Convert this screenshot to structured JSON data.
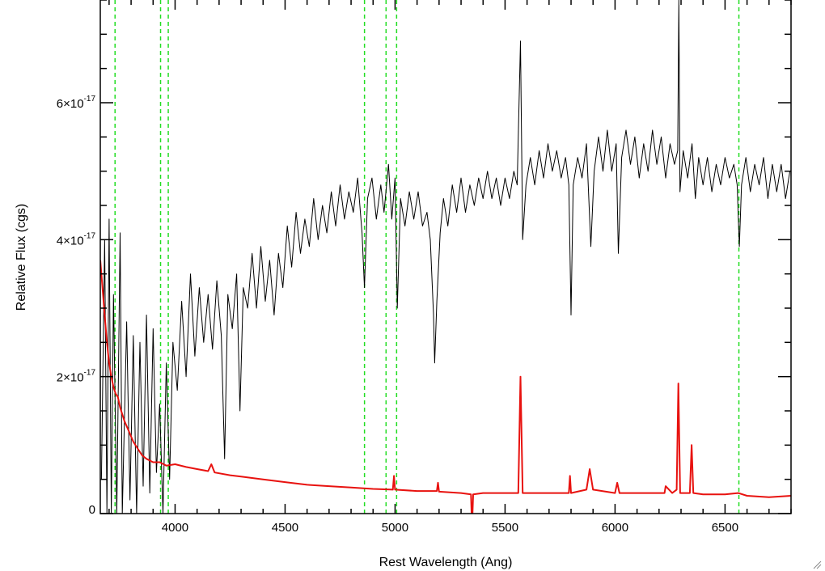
{
  "chart_data": {
    "type": "line",
    "xlabel": "Rest Wavelength (Ang)",
    "ylabel": "Relative Flux (cgs)",
    "xlim": [
      3660,
      6800
    ],
    "ylim": [
      0,
      7.5e-17
    ],
    "x_ticks": [
      {
        "value": 4000,
        "label": "4000"
      },
      {
        "value": 4500,
        "label": "4500"
      },
      {
        "value": 5000,
        "label": "5000"
      },
      {
        "value": 5500,
        "label": "5500"
      },
      {
        "value": 6000,
        "label": "6000"
      },
      {
        "value": 6500,
        "label": "6500"
      }
    ],
    "y_ticks": [
      {
        "value": 0,
        "mantissa": "0",
        "exponent": ""
      },
      {
        "value": 2e-17,
        "mantissa": "2×10",
        "exponent": "-17"
      },
      {
        "value": 4e-17,
        "mantissa": "4×10",
        "exponent": "-17"
      },
      {
        "value": 6e-17,
        "mantissa": "6×10",
        "exponent": "-17"
      }
    ],
    "x_minor_step": 100,
    "y_minor_step": 5e-18,
    "grid": false,
    "legend": false,
    "line_markers": [
      3727,
      3934,
      3969,
      4861,
      4959,
      5007,
      6563
    ],
    "series": [
      {
        "color": "#000000",
        "points": [
          [
            3665,
            5e-18
          ],
          [
            3680,
            4e-17
          ],
          [
            3690,
            0.0
          ],
          [
            3700,
            4.3e-17
          ],
          [
            3710,
            0.0
          ],
          [
            3720,
            3.2e-17
          ],
          [
            3735,
            0.0
          ],
          [
            3750,
            4.1e-17
          ],
          [
            3760,
            0.0
          ],
          [
            3780,
            2.8e-17
          ],
          [
            3795,
            2e-18
          ],
          [
            3810,
            2.6e-17
          ],
          [
            3825,
            0.0
          ],
          [
            3840,
            2.5e-17
          ],
          [
            3855,
            4e-18
          ],
          [
            3870,
            2.9e-17
          ],
          [
            3885,
            3e-18
          ],
          [
            3900,
            2.7e-17
          ],
          [
            3915,
            6e-18
          ],
          [
            3930,
            1.6e-17
          ],
          [
            3945,
            0.0
          ],
          [
            3960,
            2.2e-17
          ],
          [
            3975,
            5e-18
          ],
          [
            3990,
            2.5e-17
          ],
          [
            4010,
            1.8e-17
          ],
          [
            4030,
            3.1e-17
          ],
          [
            4050,
            2e-17
          ],
          [
            4070,
            3.5e-17
          ],
          [
            4090,
            2.3e-17
          ],
          [
            4110,
            3.3e-17
          ],
          [
            4130,
            2.5e-17
          ],
          [
            4150,
            3.2e-17
          ],
          [
            4170,
            2.4e-17
          ],
          [
            4190,
            3.4e-17
          ],
          [
            4210,
            2.6e-17
          ],
          [
            4225,
            8e-18
          ],
          [
            4240,
            3.2e-17
          ],
          [
            4260,
            2.7e-17
          ],
          [
            4280,
            3.5e-17
          ],
          [
            4295,
            1.5e-17
          ],
          [
            4310,
            3.3e-17
          ],
          [
            4330,
            3e-17
          ],
          [
            4350,
            3.8e-17
          ],
          [
            4370,
            3e-17
          ],
          [
            4390,
            3.9e-17
          ],
          [
            4410,
            3.1e-17
          ],
          [
            4430,
            3.7e-17
          ],
          [
            4450,
            2.9e-17
          ],
          [
            4470,
            3.8e-17
          ],
          [
            4490,
            3.3e-17
          ],
          [
            4510,
            4.2e-17
          ],
          [
            4530,
            3.6e-17
          ],
          [
            4550,
            4.4e-17
          ],
          [
            4570,
            3.8e-17
          ],
          [
            4590,
            4.3e-17
          ],
          [
            4610,
            3.9e-17
          ],
          [
            4630,
            4.6e-17
          ],
          [
            4650,
            4e-17
          ],
          [
            4670,
            4.5e-17
          ],
          [
            4690,
            4.1e-17
          ],
          [
            4710,
            4.7e-17
          ],
          [
            4730,
            4.2e-17
          ],
          [
            4750,
            4.8e-17
          ],
          [
            4770,
            4.3e-17
          ],
          [
            4790,
            4.7e-17
          ],
          [
            4810,
            4.4e-17
          ],
          [
            4830,
            4.9e-17
          ],
          [
            4850,
            4.1e-17
          ],
          [
            4861,
            3.3e-17
          ],
          [
            4875,
            4.6e-17
          ],
          [
            4895,
            4.9e-17
          ],
          [
            4915,
            4.3e-17
          ],
          [
            4935,
            4.8e-17
          ],
          [
            4950,
            4.4e-17
          ],
          [
            4970,
            5.1e-17
          ],
          [
            4985,
            4.3e-17
          ],
          [
            5000,
            4.9e-17
          ],
          [
            5010,
            3e-17
          ],
          [
            5025,
            4.6e-17
          ],
          [
            5045,
            4.2e-17
          ],
          [
            5065,
            4.7e-17
          ],
          [
            5085,
            4.3e-17
          ],
          [
            5105,
            4.7e-17
          ],
          [
            5125,
            4.2e-17
          ],
          [
            5145,
            4.4e-17
          ],
          [
            5160,
            4e-17
          ],
          [
            5175,
            2.9e-17
          ],
          [
            5180,
            2.2e-17
          ],
          [
            5190,
            3.1e-17
          ],
          [
            5205,
            4.1e-17
          ],
          [
            5220,
            4.6e-17
          ],
          [
            5240,
            4.2e-17
          ],
          [
            5260,
            4.8e-17
          ],
          [
            5280,
            4.4e-17
          ],
          [
            5300,
            4.9e-17
          ],
          [
            5320,
            4.4e-17
          ],
          [
            5340,
            4.8e-17
          ],
          [
            5360,
            4.5e-17
          ],
          [
            5380,
            4.9e-17
          ],
          [
            5400,
            4.6e-17
          ],
          [
            5420,
            5e-17
          ],
          [
            5440,
            4.6e-17
          ],
          [
            5460,
            4.9e-17
          ],
          [
            5480,
            4.5e-17
          ],
          [
            5500,
            4.9e-17
          ],
          [
            5520,
            4.6e-17
          ],
          [
            5540,
            5e-17
          ],
          [
            5555,
            4.8e-17
          ],
          [
            5570,
            6.9e-17
          ],
          [
            5580,
            4e-17
          ],
          [
            5595,
            4.8e-17
          ],
          [
            5615,
            5.2e-17
          ],
          [
            5635,
            4.8e-17
          ],
          [
            5655,
            5.3e-17
          ],
          [
            5675,
            4.9e-17
          ],
          [
            5695,
            5.4e-17
          ],
          [
            5715,
            5e-17
          ],
          [
            5735,
            5.3e-17
          ],
          [
            5755,
            4.9e-17
          ],
          [
            5775,
            5.2e-17
          ],
          [
            5790,
            4.8e-17
          ],
          [
            5800,
            2.9e-17
          ],
          [
            5810,
            4.8e-17
          ],
          [
            5830,
            5.2e-17
          ],
          [
            5850,
            4.9e-17
          ],
          [
            5870,
            5.4e-17
          ],
          [
            5890,
            3.9e-17
          ],
          [
            5905,
            5e-17
          ],
          [
            5925,
            5.5e-17
          ],
          [
            5945,
            5e-17
          ],
          [
            5965,
            5.6e-17
          ],
          [
            5985,
            5e-17
          ],
          [
            6005,
            5.4e-17
          ],
          [
            6015,
            3.8e-17
          ],
          [
            6030,
            5.2e-17
          ],
          [
            6050,
            5.6e-17
          ],
          [
            6070,
            5.1e-17
          ],
          [
            6090,
            5.5e-17
          ],
          [
            6110,
            4.9e-17
          ],
          [
            6130,
            5.4e-17
          ],
          [
            6150,
            5e-17
          ],
          [
            6170,
            5.6e-17
          ],
          [
            6190,
            5.1e-17
          ],
          [
            6210,
            5.5e-17
          ],
          [
            6230,
            4.9e-17
          ],
          [
            6250,
            5.4e-17
          ],
          [
            6270,
            5.1e-17
          ],
          [
            6285,
            5.3e-17
          ],
          [
            6290,
            7.5e-17
          ],
          [
            6295,
            4.7e-17
          ],
          [
            6310,
            5.3e-17
          ],
          [
            6330,
            4.9e-17
          ],
          [
            6350,
            5.4e-17
          ],
          [
            6365,
            4.6e-17
          ],
          [
            6380,
            5.2e-17
          ],
          [
            6400,
            4.8e-17
          ],
          [
            6420,
            5.2e-17
          ],
          [
            6440,
            4.7e-17
          ],
          [
            6460,
            5.1e-17
          ],
          [
            6480,
            4.8e-17
          ],
          [
            6500,
            5.2e-17
          ],
          [
            6520,
            4.9e-17
          ],
          [
            6540,
            5.1e-17
          ],
          [
            6555,
            4.8e-17
          ],
          [
            6565,
            3.9e-17
          ],
          [
            6575,
            4.8e-17
          ],
          [
            6595,
            5.2e-17
          ],
          [
            6615,
            4.7e-17
          ],
          [
            6635,
            5.1e-17
          ],
          [
            6655,
            4.8e-17
          ],
          [
            6675,
            5.2e-17
          ],
          [
            6695,
            4.6e-17
          ],
          [
            6715,
            5.1e-17
          ],
          [
            6735,
            4.7e-17
          ],
          [
            6755,
            5.1e-17
          ],
          [
            6775,
            4.6e-17
          ],
          [
            6795,
            5e-17
          ]
        ]
      },
      {
        "color": "#e8120f",
        "points": [
          [
            3660,
            3.7e-17
          ],
          [
            3670,
            3.3e-17
          ],
          [
            3680,
            2.9e-17
          ],
          [
            3690,
            2.5e-17
          ],
          [
            3700,
            2.2e-17
          ],
          [
            3710,
            2e-17
          ],
          [
            3720,
            1.85e-17
          ],
          [
            3730,
            1.75e-17
          ],
          [
            3740,
            1.7e-17
          ],
          [
            3750,
            1.55e-17
          ],
          [
            3770,
            1.35e-17
          ],
          [
            3790,
            1.2e-17
          ],
          [
            3810,
            1.05e-17
          ],
          [
            3830,
            9.5e-18
          ],
          [
            3850,
            8.5e-18
          ],
          [
            3870,
            8e-18
          ],
          [
            3900,
            7.5e-18
          ],
          [
            3930,
            7.5e-18
          ],
          [
            3960,
            7e-18
          ],
          [
            4000,
            7.2e-18
          ],
          [
            4050,
            6.8e-18
          ],
          [
            4100,
            6.5e-18
          ],
          [
            4150,
            6.2e-18
          ],
          [
            4165,
            7.2e-18
          ],
          [
            4180,
            6e-18
          ],
          [
            4250,
            5.6e-18
          ],
          [
            4300,
            5.4e-18
          ],
          [
            4400,
            5e-18
          ],
          [
            4500,
            4.6e-18
          ],
          [
            4600,
            4.2e-18
          ],
          [
            4700,
            4e-18
          ],
          [
            4800,
            3.8e-18
          ],
          [
            4900,
            3.6e-18
          ],
          [
            4990,
            3.5e-18
          ],
          [
            4995,
            5.5e-18
          ],
          [
            5000,
            3.5e-18
          ],
          [
            5100,
            3.3e-18
          ],
          [
            5190,
            3.3e-18
          ],
          [
            5195,
            4.5e-18
          ],
          [
            5200,
            3.2e-18
          ],
          [
            5300,
            3e-18
          ],
          [
            5345,
            2.8e-18
          ],
          [
            5350,
            -2e-18
          ],
          [
            5355,
            2.8e-18
          ],
          [
            5400,
            3e-18
          ],
          [
            5500,
            3e-18
          ],
          [
            5560,
            3e-18
          ],
          [
            5570,
            2e-17
          ],
          [
            5580,
            3e-18
          ],
          [
            5700,
            3e-18
          ],
          [
            5790,
            3e-18
          ],
          [
            5795,
            5.5e-18
          ],
          [
            5800,
            3e-18
          ],
          [
            5870,
            3.5e-18
          ],
          [
            5885,
            6.5e-18
          ],
          [
            5900,
            3.5e-18
          ],
          [
            6000,
            3e-18
          ],
          [
            6010,
            4.5e-18
          ],
          [
            6020,
            3e-18
          ],
          [
            6150,
            3e-18
          ],
          [
            6225,
            3e-18
          ],
          [
            6230,
            4e-18
          ],
          [
            6260,
            3e-18
          ],
          [
            6280,
            3.5e-18
          ],
          [
            6288,
            1.9e-17
          ],
          [
            6296,
            3e-18
          ],
          [
            6340,
            3e-18
          ],
          [
            6348,
            1e-17
          ],
          [
            6356,
            3e-18
          ],
          [
            6400,
            2.8e-18
          ],
          [
            6500,
            2.8e-18
          ],
          [
            6560,
            3e-18
          ],
          [
            6600,
            2.6e-18
          ],
          [
            6700,
            2.4e-18
          ],
          [
            6800,
            2.6e-18
          ]
        ]
      }
    ]
  }
}
